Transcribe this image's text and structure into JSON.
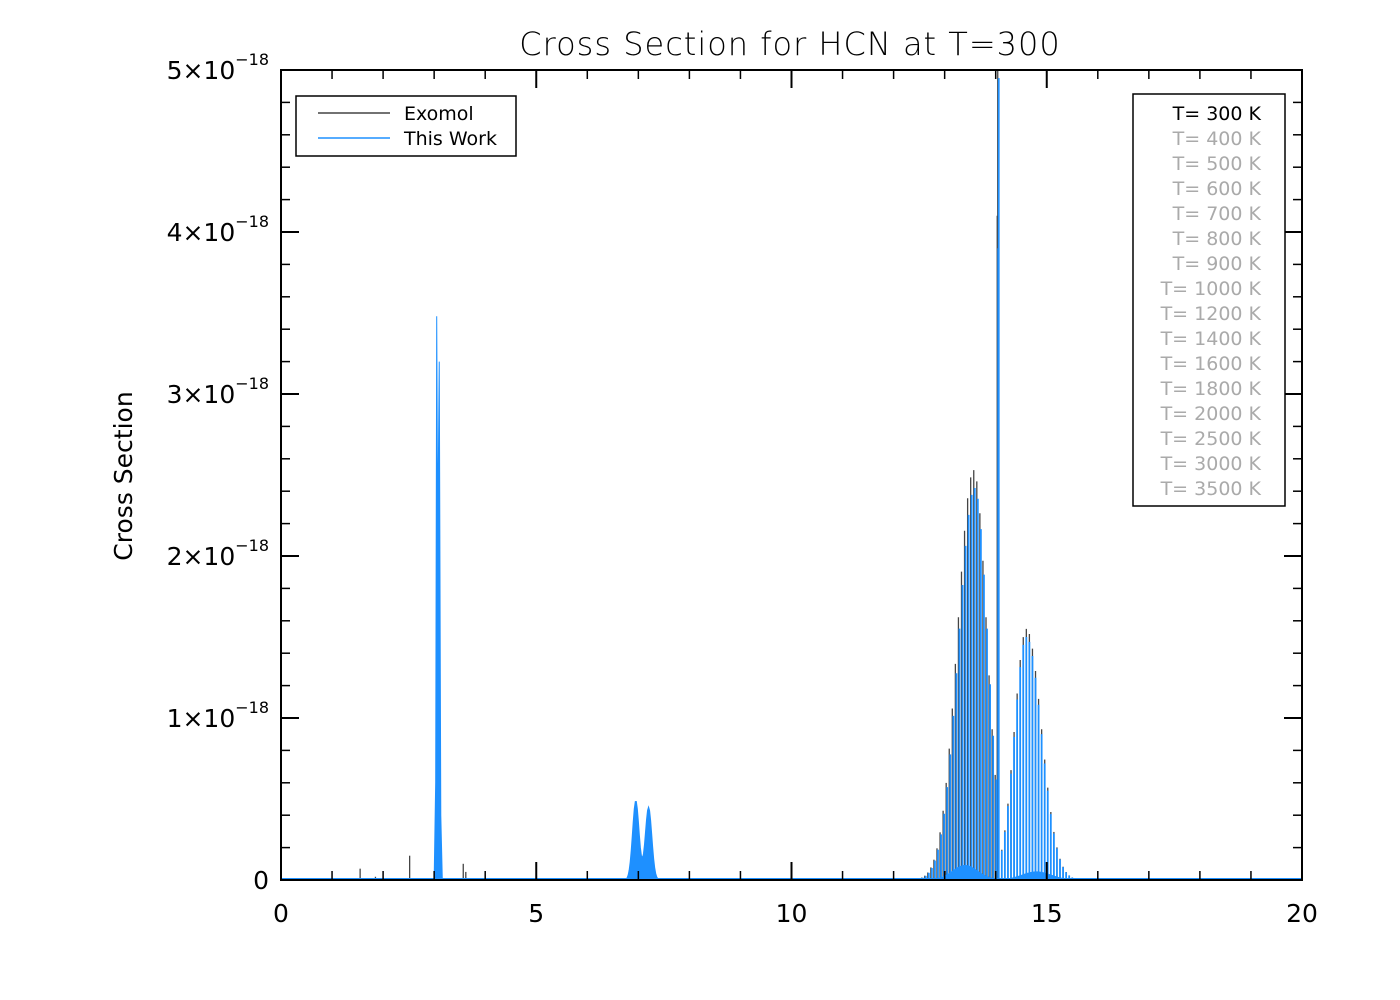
{
  "chart_data": {
    "type": "line",
    "title": "Cross Section for HCN at T=300",
    "xlabel": "",
    "ylabel": "Cross Section",
    "xlim": [
      0,
      20
    ],
    "ylim": [
      0,
      5e-18
    ],
    "x_ticks": [
      "0",
      "5",
      "10",
      "15",
      "20"
    ],
    "x_tick_values": [
      0,
      5,
      10,
      15,
      20
    ],
    "y_tick_values": [
      0,
      1e-18,
      2e-18,
      3e-18,
      4e-18,
      5e-18
    ],
    "y_ticks": [
      {
        "mant": "0",
        "exp": ""
      },
      {
        "mant": "1×10",
        "exp": "−18"
      },
      {
        "mant": "2×10",
        "exp": "−18"
      },
      {
        "mant": "3×10",
        "exp": "−18"
      },
      {
        "mant": "4×10",
        "exp": "−18"
      },
      {
        "mant": "5×10",
        "exp": "−18"
      }
    ],
    "legend": {
      "placement": "top-left",
      "entries": [
        {
          "name": "Exomol",
          "color": "#444444"
        },
        {
          "name": "This Work",
          "color": "#1e90ff"
        }
      ]
    },
    "temperature_legend": {
      "placement": "top-right",
      "active_index": 0,
      "active_color": "#000000",
      "inactive_color": "#aaaaaa",
      "items": [
        "T= 300 K",
        "T= 400 K",
        "T= 500 K",
        "T= 600 K",
        "T= 700 K",
        "T= 800 K",
        "T= 900 K",
        "T= 1000 K",
        "T= 1200 K",
        "T= 1400 K",
        "T= 1600 K",
        "T= 1800 K",
        "T= 2000 K",
        "T= 2500 K",
        "T= 3000 K",
        "T= 3500 K"
      ]
    },
    "series": [
      {
        "name": "Exomol",
        "color": "#444444",
        "peaks": [
          {
            "x": 1.55,
            "y": 7e-20
          },
          {
            "x": 1.85,
            "y": 2e-20
          },
          {
            "x": 2.52,
            "y": 1.5e-19
          },
          {
            "x": 3.05,
            "y": 3.5e-18
          },
          {
            "x": 3.1,
            "y": 3.22e-18
          },
          {
            "x": 3.57,
            "y": 1e-19
          },
          {
            "x": 6.95,
            "y": 5e-19
          },
          {
            "x": 7.2,
            "y": 4.6e-19
          },
          {
            "x": 13.7,
            "y": 2.53e-18
          },
          {
            "x": 14.04,
            "y": 5e-18
          },
          {
            "x": 14.6,
            "y": 1.55e-18
          }
        ]
      },
      {
        "name": "This Work",
        "color": "#1e90ff",
        "peaks": [
          {
            "x": 3.05,
            "y": 3.48e-18
          },
          {
            "x": 3.1,
            "y": 3.2e-18
          },
          {
            "x": 6.95,
            "y": 4.9e-19
          },
          {
            "x": 7.2,
            "y": 4.5e-19
          },
          {
            "x": 13.68,
            "y": 2.42e-18
          },
          {
            "x": 14.04,
            "y": 4.95e-18
          },
          {
            "x": 14.55,
            "y": 1.5e-18
          }
        ]
      }
    ]
  }
}
